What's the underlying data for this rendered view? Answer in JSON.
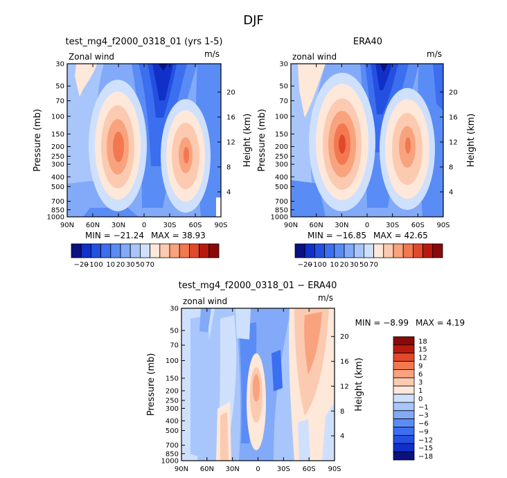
{
  "page_title": "DJF",
  "colors": {
    "full_scale": [
      "#0a1180",
      "#1030c8",
      "#2450e0",
      "#3c6ef0",
      "#5a8cf6",
      "#82aaf8",
      "#a8c6fb",
      "#cfe0fd",
      "#fde8da",
      "#fccab0",
      "#f9a27e",
      "#f27850",
      "#e04a2c",
      "#b81a10",
      "#8a0a0a"
    ],
    "diff_scale": [
      "#0a1180",
      "#1030c8",
      "#2450e0",
      "#3c6ef0",
      "#5a8cf6",
      "#82aaf8",
      "#a8c6fb",
      "#cfe0fd",
      "#fde8da",
      "#fccab0",
      "#f9a27e",
      "#f27850",
      "#e04a2c",
      "#b81a10",
      "#8a0a0a"
    ]
  },
  "chart_data": [
    {
      "type": "heatmap",
      "title": "test_mg4_f2000_0318_01 (yrs 1-5)",
      "field_label": "Zonal wind",
      "units": "m/s",
      "ylabel": "Pressure (mb)",
      "y2label": "Height (km)",
      "x_ticks": [
        "90N",
        "60N",
        "30N",
        "0",
        "30S",
        "60S",
        "90S"
      ],
      "y_ticks": [
        "30",
        "50",
        "70",
        "100",
        "150",
        "200",
        "250",
        "300",
        "400",
        "500",
        "700",
        "850",
        "1000"
      ],
      "y2_ticks": [
        "20",
        "16",
        "12",
        "8",
        "4"
      ],
      "min_text": "MIN = −21.24",
      "max_text": "MAX =   38.93",
      "min": -21.24,
      "max": 38.93,
      "colorbar_labels": [
        "−20",
        "−10",
        "0",
        "10",
        "20",
        "30",
        "50",
        "70"
      ]
    },
    {
      "type": "heatmap",
      "title": "ERA40",
      "field_label": "zonal wind",
      "units": "m/s",
      "ylabel": "Pressure (mb)",
      "y2label": "Height (km)",
      "x_ticks": [
        "90N",
        "60N",
        "30N",
        "0",
        "30S",
        "60S",
        "90S"
      ],
      "y_ticks": [
        "30",
        "50",
        "70",
        "100",
        "150",
        "200",
        "250",
        "300",
        "400",
        "500",
        "700",
        "850",
        "1000"
      ],
      "y2_ticks": [
        "20",
        "16",
        "12",
        "8",
        "4"
      ],
      "min_text": "MIN = −16.85",
      "max_text": "MAX =   42.65",
      "min": -16.85,
      "max": 42.65,
      "colorbar_labels": [
        "−20",
        "−10",
        "0",
        "10",
        "20",
        "30",
        "50",
        "70"
      ]
    },
    {
      "type": "heatmap",
      "title": "test_mg4_f2000_0318_01 − ERA40",
      "field_label": "zonal wind",
      "units": "m/s",
      "ylabel": "Pressure (mb)",
      "y2label": "Height (km)",
      "x_ticks": [
        "90N",
        "60N",
        "30N",
        "0",
        "30S",
        "60S",
        "90S"
      ],
      "y_ticks": [
        "30",
        "50",
        "70",
        "100",
        "150",
        "200",
        "250",
        "300",
        "400",
        "500",
        "700",
        "850",
        "1000"
      ],
      "y2_ticks": [
        "20",
        "16",
        "12",
        "8",
        "4"
      ],
      "min_text": "MIN =   −8.99",
      "max_text": "MAX =    4.19",
      "min": -8.99,
      "max": 4.19,
      "colorbar_labels": [
        "18",
        "15",
        "12",
        "9",
        "6",
        "3",
        "1",
        "0",
        "−1",
        "−3",
        "−6",
        "−9",
        "−12",
        "−15",
        "−18"
      ]
    }
  ]
}
